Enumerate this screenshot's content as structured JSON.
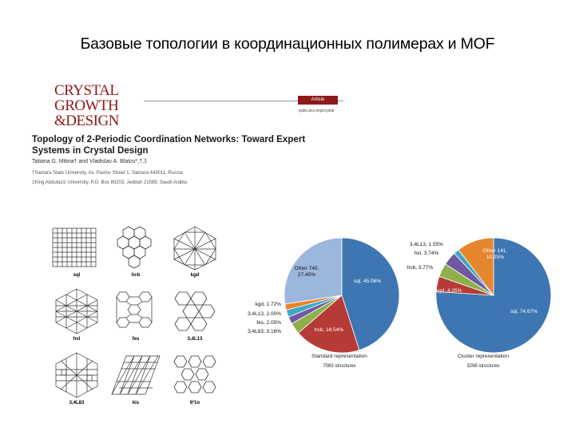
{
  "slide": {
    "title": "Базовые топологии в координационных полимерах и MOF"
  },
  "journal": {
    "logo_line1": "CRYSTAL",
    "logo_line2": "GROWTH",
    "logo_line3": "&DESIGN",
    "badge": "Article",
    "url": "pubs.acs.org/crystal"
  },
  "paper": {
    "title": "Topology of 2-Periodic Coordination Networks: Toward Expert Systems in Crystal Design",
    "authors": "Tatiana G. Mitina† and Vladislav A. Blatov*,†,‡",
    "affiliation1": "†Samara State University, Ac. Pavlov Street 1, Samara 443011, Russia",
    "affiliation2": "‡King Abdulaziz University, P.O. Box 80203, Jeddah 21589, Saudi Arabia"
  },
  "networks": [
    {
      "id": "sql",
      "label": "sql"
    },
    {
      "id": "hcb",
      "label": "hcb"
    },
    {
      "id": "kgd",
      "label": "kgd"
    },
    {
      "id": "hxl",
      "label": "hxl"
    },
    {
      "id": "fes",
      "label": "fes"
    },
    {
      "id": "3413",
      "label": "3,4L13"
    },
    {
      "id": "3483",
      "label": "3,4L83"
    },
    {
      "id": "kis",
      "label": "kis"
    },
    {
      "id": "6310",
      "label": "6³1o"
    }
  ],
  "chart_data": [
    {
      "type": "pie",
      "title": "Standard representation",
      "subtitle": "7083 structures",
      "slices": [
        {
          "label": "sql, 45.06%",
          "value": 45.06,
          "color": "#3e76b3"
        },
        {
          "label": "hcb, 18.54%",
          "value": 18.54,
          "color": "#b63a35"
        },
        {
          "label": "3,4L83, 3.16%",
          "value": 3.16,
          "color": "#8db04b"
        },
        {
          "label": "fes, 2.05%",
          "value": 2.05,
          "color": "#7059a0"
        },
        {
          "label": "3,4L13, 2.00%",
          "value": 2.0,
          "color": "#3ea8c7"
        },
        {
          "label": "kgd, 1.72%",
          "value": 1.72,
          "color": "#e6862c"
        },
        {
          "label": "Other 740, 27.40%",
          "value": 27.4,
          "color": "#9db6dd"
        }
      ]
    },
    {
      "type": "pie",
      "title": "Cluster representation",
      "subtitle": "3298 structures",
      "slices": [
        {
          "label": "sql, 74.67%",
          "value": 74.67,
          "color": "#3e76b3"
        },
        {
          "label": "kgd, 4.25%",
          "value": 4.25,
          "color": "#b63a35"
        },
        {
          "label": "hcb, 3.77%",
          "value": 3.77,
          "color": "#8db04b"
        },
        {
          "label": "hxl, 3.74%",
          "value": 3.74,
          "color": "#7059a0"
        },
        {
          "label": "3,4L13, 1.55%",
          "value": 1.55,
          "color": "#3ea8c7"
        },
        {
          "label": "Other 141, 10.25%",
          "value": 10.25,
          "color": "#e6862c"
        }
      ]
    }
  ]
}
